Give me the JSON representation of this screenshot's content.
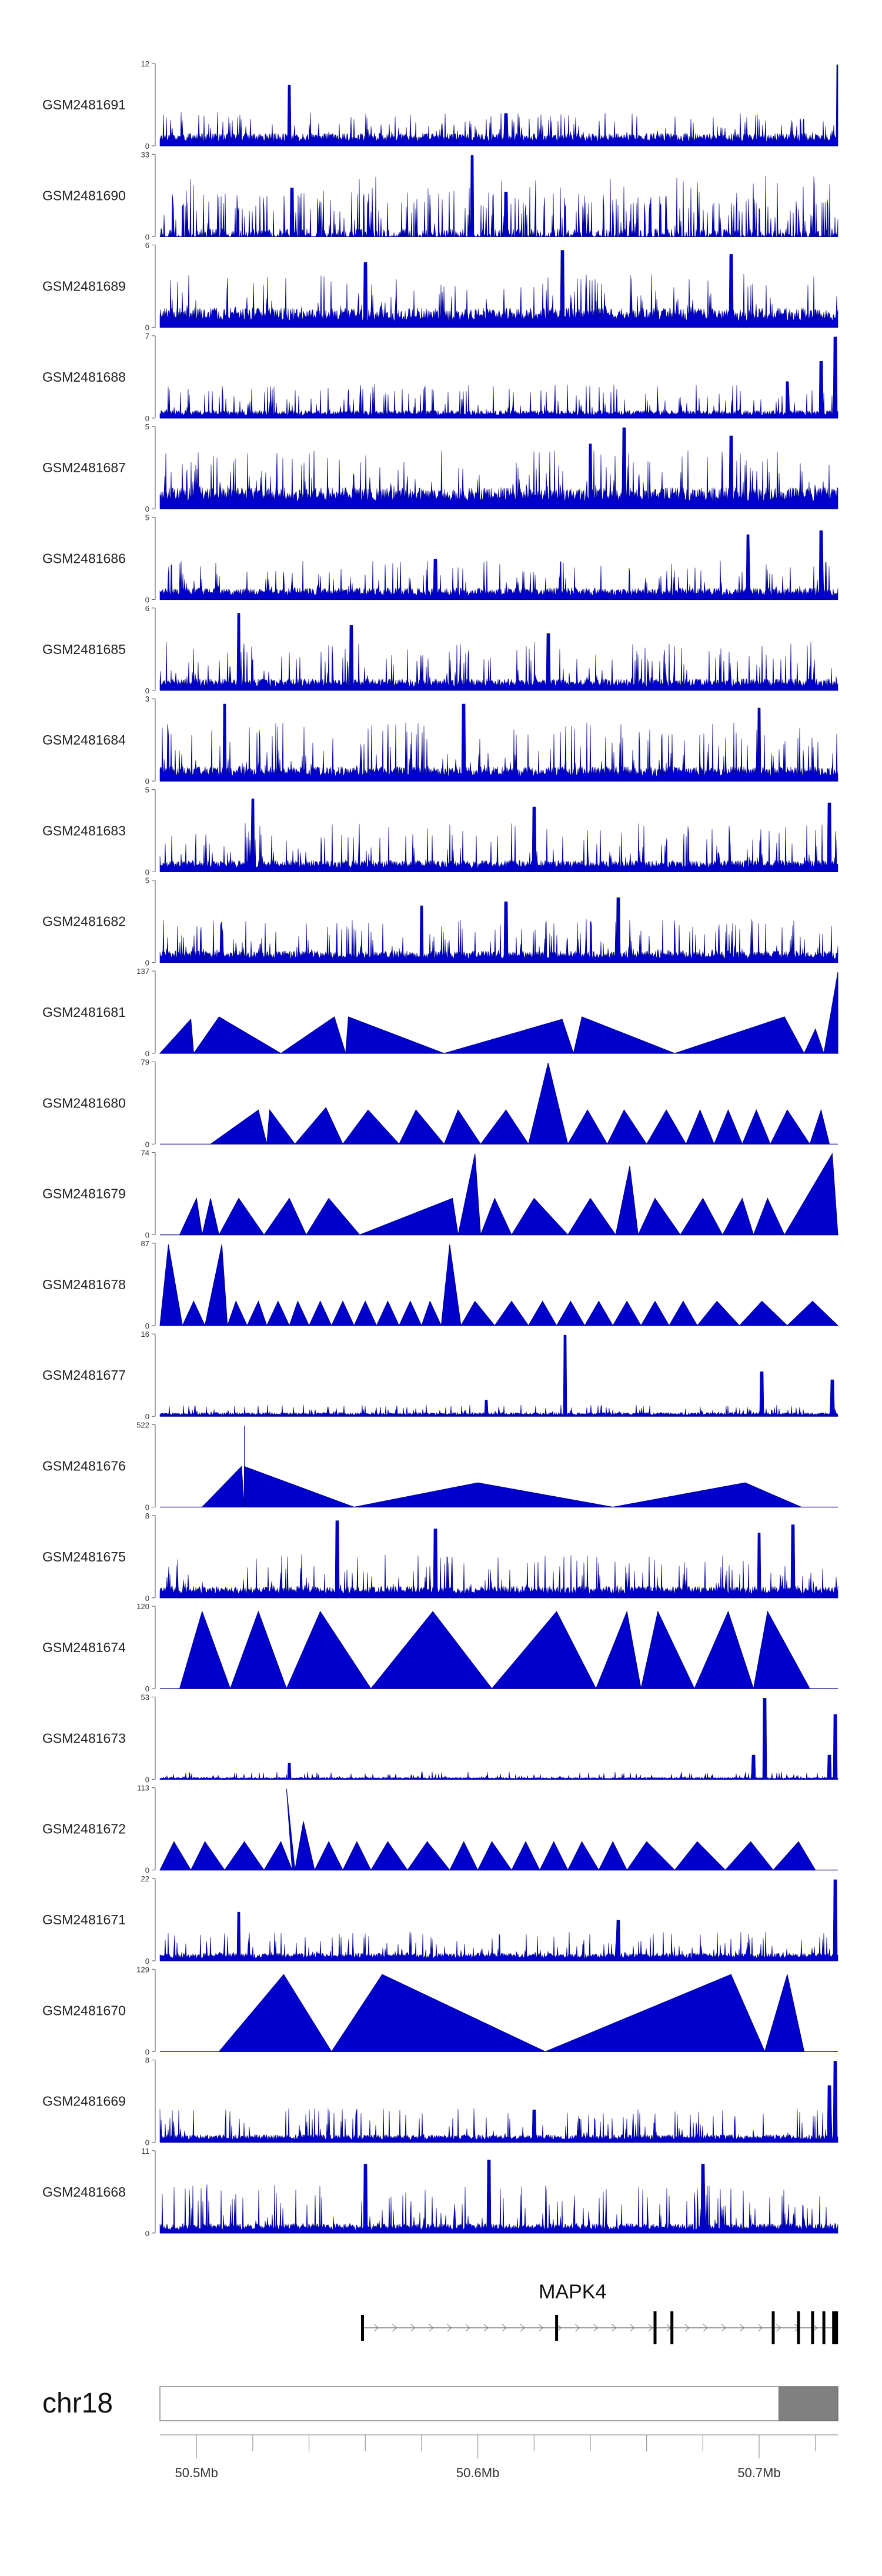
{
  "chart_data": {
    "type": "area",
    "chromosome": "chr18",
    "x_unit": "Mb",
    "xlim": [
      50.487,
      50.728
    ],
    "region_highlight": [
      50.707,
      50.728
    ],
    "x_ticks_major": [
      {
        "value": 50.5,
        "label": "50.5Mb"
      },
      {
        "value": 50.6,
        "label": "50.6Mb"
      },
      {
        "value": 50.7,
        "label": "50.7Mb"
      }
    ],
    "x_ticks_minor": [
      50.52,
      50.54,
      50.56,
      50.58,
      50.62,
      50.64,
      50.66,
      50.68,
      50.72
    ],
    "colors": {
      "signal": "#0000cc",
      "signal_stroke": "#000088",
      "gene": "#000000",
      "highlight": "#808080"
    },
    "gene": {
      "name": "MAPK4",
      "start": 50.559,
      "end": 50.728,
      "exons": [
        50.559,
        50.628,
        50.663,
        50.669,
        50.705,
        50.714,
        50.719,
        50.723,
        50.727
      ]
    },
    "tracks": [
      {
        "name": "GSM2481691",
        "ymax": 12,
        "ymin": 0,
        "style": "dense",
        "baseline": 0.13,
        "noise": 0.35,
        "peaks": [
          [
            50.533,
            0.75
          ],
          [
            50.728,
            1.0
          ],
          [
            50.61,
            0.4
          ]
        ]
      },
      {
        "name": "GSM2481690",
        "ymax": 33,
        "ymin": 0,
        "style": "spiky",
        "baseline": 0.05,
        "noise": 0.45,
        "peaks": [
          [
            50.598,
            1.0
          ],
          [
            50.534,
            0.6
          ],
          [
            50.61,
            0.55
          ]
        ]
      },
      {
        "name": "GSM2481689",
        "ymax": 6,
        "ymin": 0,
        "style": "dense",
        "baseline": 0.2,
        "noise": 0.55,
        "peaks": [
          [
            50.63,
            0.95
          ],
          [
            50.69,
            0.9
          ],
          [
            50.56,
            0.8
          ]
        ]
      },
      {
        "name": "GSM2481688",
        "ymax": 7,
        "ymin": 0,
        "style": "dense",
        "baseline": 0.08,
        "noise": 0.35,
        "peaks": [
          [
            50.727,
            1.0
          ],
          [
            50.722,
            0.7
          ],
          [
            50.71,
            0.45
          ]
        ]
      },
      {
        "name": "GSM2481687",
        "ymax": 5,
        "ymin": 0,
        "style": "dense",
        "baseline": 0.22,
        "noise": 0.6,
        "peaks": [
          [
            50.652,
            1.0
          ],
          [
            50.69,
            0.9
          ],
          [
            50.64,
            0.8
          ]
        ]
      },
      {
        "name": "GSM2481686",
        "ymax": 5,
        "ymin": 0,
        "style": "dense",
        "baseline": 0.12,
        "noise": 0.4,
        "peaks": [
          [
            50.696,
            0.8
          ],
          [
            50.722,
            0.85
          ],
          [
            50.585,
            0.5
          ]
        ]
      },
      {
        "name": "GSM2481685",
        "ymax": 6,
        "ymin": 0,
        "style": "dense",
        "baseline": 0.12,
        "noise": 0.5,
        "peaks": [
          [
            50.515,
            0.95
          ],
          [
            50.555,
            0.8
          ],
          [
            50.625,
            0.7
          ]
        ]
      },
      {
        "name": "GSM2481684",
        "ymax": 3,
        "ymin": 0,
        "style": "dense",
        "baseline": 0.15,
        "noise": 0.6,
        "peaks": [
          [
            50.51,
            0.95
          ],
          [
            50.595,
            0.95
          ],
          [
            50.7,
            0.9
          ]
        ]
      },
      {
        "name": "GSM2481683",
        "ymax": 5,
        "ymin": 0,
        "style": "dense",
        "baseline": 0.12,
        "noise": 0.5,
        "peaks": [
          [
            50.52,
            0.9
          ],
          [
            50.62,
            0.8
          ],
          [
            50.725,
            0.85
          ]
        ]
      },
      {
        "name": "GSM2481682",
        "ymax": 5,
        "ymin": 0,
        "style": "dense",
        "baseline": 0.12,
        "noise": 0.45,
        "peaks": [
          [
            50.61,
            0.75
          ],
          [
            50.65,
            0.8
          ],
          [
            50.58,
            0.7
          ]
        ]
      },
      {
        "name": "GSM2481681",
        "ymax": 137,
        "ymin": 0,
        "style": "triangles",
        "segments": [
          [
            50.487,
            50.498,
            50.499,
            0.42
          ],
          [
            50.499,
            50.508,
            50.53,
            0.45
          ],
          [
            50.53,
            50.549,
            50.553,
            0.45
          ],
          [
            50.553,
            50.554,
            50.588,
            0.45
          ],
          [
            50.588,
            50.63,
            50.634,
            0.42
          ],
          [
            50.634,
            50.637,
            50.67,
            0.45
          ],
          [
            50.67,
            50.709,
            50.716,
            0.45
          ],
          [
            50.716,
            50.72,
            50.723,
            0.3
          ],
          [
            50.723,
            50.728,
            50.728,
            1.0
          ]
        ]
      },
      {
        "name": "GSM2481680",
        "ymax": 79,
        "ymin": 0,
        "style": "triangles",
        "segments": [
          [
            50.505,
            50.522,
            50.525,
            0.42
          ],
          [
            50.525,
            50.526,
            50.535,
            0.42
          ],
          [
            50.535,
            50.546,
            50.552,
            0.45
          ],
          [
            50.552,
            50.561,
            50.572,
            0.42
          ],
          [
            50.572,
            50.578,
            50.588,
            0.42
          ],
          [
            50.588,
            50.593,
            50.601,
            0.42
          ],
          [
            50.601,
            50.61,
            50.618,
            0.42
          ],
          [
            50.618,
            50.625,
            50.632,
            1.0
          ],
          [
            50.632,
            50.639,
            50.646,
            0.42
          ],
          [
            50.646,
            50.652,
            50.66,
            0.42
          ],
          [
            50.66,
            50.667,
            50.674,
            0.42
          ],
          [
            50.674,
            50.679,
            50.684,
            0.42
          ],
          [
            50.684,
            50.689,
            50.694,
            0.42
          ],
          [
            50.694,
            50.699,
            50.704,
            0.42
          ],
          [
            50.704,
            50.71,
            50.718,
            0.42
          ],
          [
            50.718,
            50.722,
            50.725,
            0.42
          ]
        ]
      },
      {
        "name": "GSM2481679",
        "ymax": 74,
        "ymin": 0,
        "style": "triangles",
        "segments": [
          [
            50.494,
            50.5,
            50.502,
            0.45
          ],
          [
            50.502,
            50.505,
            50.508,
            0.45
          ],
          [
            50.508,
            50.515,
            50.524,
            0.45
          ],
          [
            50.524,
            50.533,
            50.539,
            0.45
          ],
          [
            50.539,
            50.547,
            50.558,
            0.45
          ],
          [
            50.558,
            50.591,
            50.593,
            0.45
          ],
          [
            50.593,
            50.599,
            50.601,
            1.0
          ],
          [
            50.601,
            50.606,
            50.612,
            0.45
          ],
          [
            50.612,
            50.62,
            50.632,
            0.45
          ],
          [
            50.632,
            50.64,
            50.649,
            0.45
          ],
          [
            50.649,
            50.654,
            50.657,
            0.85
          ],
          [
            50.657,
            50.663,
            50.672,
            0.45
          ],
          [
            50.672,
            50.68,
            50.687,
            0.45
          ],
          [
            50.687,
            50.694,
            50.698,
            0.45
          ],
          [
            50.698,
            50.703,
            50.709,
            0.45
          ],
          [
            50.709,
            50.726,
            50.728,
            1.0
          ]
        ]
      },
      {
        "name": "GSM2481678",
        "ymax": 87,
        "ymin": 0,
        "style": "triangles",
        "segments": [
          [
            50.487,
            50.49,
            50.495,
            1.0
          ],
          [
            50.495,
            50.499,
            50.503,
            0.3
          ],
          [
            50.503,
            50.509,
            50.511,
            1.0
          ],
          [
            50.511,
            50.514,
            50.518,
            0.3
          ],
          [
            50.518,
            50.522,
            50.525,
            0.3
          ],
          [
            50.525,
            50.529,
            50.533,
            0.3
          ],
          [
            50.533,
            50.536,
            50.54,
            0.3
          ],
          [
            50.54,
            50.544,
            50.548,
            0.3
          ],
          [
            50.548,
            50.552,
            50.556,
            0.3
          ],
          [
            50.556,
            50.56,
            50.564,
            0.3
          ],
          [
            50.564,
            50.568,
            50.572,
            0.3
          ],
          [
            50.572,
            50.576,
            50.58,
            0.3
          ],
          [
            50.58,
            50.583,
            50.587,
            0.3
          ],
          [
            50.587,
            50.59,
            50.594,
            1.0
          ],
          [
            50.594,
            50.599,
            50.606,
            0.3
          ],
          [
            50.606,
            50.612,
            50.618,
            0.3
          ],
          [
            50.618,
            50.623,
            50.628,
            0.3
          ],
          [
            50.628,
            50.633,
            50.638,
            0.3
          ],
          [
            50.638,
            50.643,
            50.648,
            0.3
          ],
          [
            50.648,
            50.653,
            50.658,
            0.3
          ],
          [
            50.658,
            50.663,
            50.668,
            0.3
          ],
          [
            50.668,
            50.673,
            50.678,
            0.3
          ],
          [
            50.678,
            50.685,
            50.693,
            0.3
          ],
          [
            50.693,
            50.701,
            50.71,
            0.3
          ],
          [
            50.71,
            50.719,
            50.728,
            0.3
          ]
        ]
      },
      {
        "name": "GSM2481677",
        "ymax": 16,
        "ymin": 0,
        "style": "dense",
        "baseline": 0.04,
        "noise": 0.12,
        "peaks": [
          [
            50.631,
            1.0
          ],
          [
            50.701,
            0.55
          ],
          [
            50.726,
            0.45
          ],
          [
            50.603,
            0.2
          ]
        ]
      },
      {
        "name": "GSM2481676",
        "ymax": 522,
        "ymin": 0,
        "style": "triangles",
        "segments": [
          [
            50.502,
            50.516,
            50.517,
            0.5
          ],
          [
            50.517,
            50.517,
            50.517,
            1.0
          ],
          [
            50.517,
            50.517,
            50.556,
            0.5
          ],
          [
            50.556,
            50.6,
            50.648,
            0.3
          ],
          [
            50.648,
            50.695,
            50.715,
            0.3
          ]
        ]
      },
      {
        "name": "GSM2481675",
        "ymax": 8,
        "ymin": 0,
        "style": "dense",
        "baseline": 0.12,
        "noise": 0.45,
        "peaks": [
          [
            50.55,
            0.95
          ],
          [
            50.585,
            0.85
          ],
          [
            50.712,
            0.9
          ],
          [
            50.7,
            0.8
          ]
        ]
      },
      {
        "name": "GSM2481674",
        "ymax": 120,
        "ymin": 0,
        "style": "triangles",
        "segments": [
          [
            50.494,
            50.502,
            50.512,
            0.95
          ],
          [
            50.512,
            50.522,
            50.532,
            0.95
          ],
          [
            50.532,
            50.544,
            50.562,
            0.95
          ],
          [
            50.562,
            50.584,
            50.605,
            0.95
          ],
          [
            50.605,
            50.628,
            50.642,
            0.95
          ],
          [
            50.642,
            50.653,
            50.658,
            0.95
          ],
          [
            50.658,
            50.664,
            50.677,
            0.95
          ],
          [
            50.677,
            50.689,
            50.698,
            0.95
          ],
          [
            50.698,
            50.703,
            50.718,
            0.95
          ]
        ]
      },
      {
        "name": "GSM2481673",
        "ymax": 53,
        "ymin": 0,
        "style": "dense",
        "baseline": 0.02,
        "noise": 0.08,
        "peaks": [
          [
            50.702,
            1.0
          ],
          [
            50.698,
            0.3
          ],
          [
            50.727,
            0.8
          ],
          [
            50.725,
            0.3
          ],
          [
            50.533,
            0.2
          ]
        ]
      },
      {
        "name": "GSM2481672",
        "ymax": 113,
        "ymin": 0,
        "style": "triangles",
        "segments": [
          [
            50.487,
            50.492,
            50.498,
            0.35
          ],
          [
            50.498,
            50.503,
            50.51,
            0.35
          ],
          [
            50.51,
            50.517,
            50.524,
            0.35
          ],
          [
            50.524,
            50.53,
            50.534,
            0.35
          ],
          [
            50.534,
            50.532,
            50.535,
            1.0
          ],
          [
            50.535,
            50.538,
            50.542,
            0.6
          ],
          [
            50.542,
            50.547,
            50.552,
            0.35
          ],
          [
            50.552,
            50.557,
            50.562,
            0.35
          ],
          [
            50.562,
            50.568,
            50.575,
            0.35
          ],
          [
            50.575,
            50.582,
            50.59,
            0.35
          ],
          [
            50.59,
            50.595,
            50.6,
            0.35
          ],
          [
            50.6,
            50.605,
            50.612,
            0.35
          ],
          [
            50.612,
            50.617,
            50.622,
            0.35
          ],
          [
            50.622,
            50.627,
            50.632,
            0.35
          ],
          [
            50.632,
            50.637,
            50.643,
            0.35
          ],
          [
            50.643,
            50.648,
            50.653,
            0.35
          ],
          [
            50.653,
            50.66,
            50.67,
            0.35
          ],
          [
            50.67,
            50.678,
            50.688,
            0.35
          ],
          [
            50.688,
            50.697,
            50.705,
            0.35
          ],
          [
            50.705,
            50.714,
            50.72,
            0.35
          ]
        ]
      },
      {
        "name": "GSM2481671",
        "ymax": 22,
        "ymin": 0,
        "style": "dense",
        "baseline": 0.08,
        "noise": 0.3,
        "peaks": [
          [
            50.727,
            1.0
          ],
          [
            50.515,
            0.6
          ],
          [
            50.65,
            0.5
          ]
        ]
      },
      {
        "name": "GSM2481670",
        "ymax": 129,
        "ymin": 0,
        "style": "triangles",
        "segments": [
          [
            50.508,
            50.531,
            50.548,
            0.95
          ],
          [
            50.548,
            50.566,
            50.624,
            0.95
          ],
          [
            50.624,
            50.69,
            50.702,
            0.95
          ],
          [
            50.702,
            50.71,
            50.716,
            0.95
          ]
        ]
      },
      {
        "name": "GSM2481669",
        "ymax": 8,
        "ymin": 0,
        "style": "dense",
        "baseline": 0.08,
        "noise": 0.35,
        "peaks": [
          [
            50.727,
            1.0
          ],
          [
            50.725,
            0.7
          ],
          [
            50.62,
            0.4
          ]
        ]
      },
      {
        "name": "GSM2481668",
        "ymax": 11,
        "ymin": 0,
        "style": "dense",
        "baseline": 0.1,
        "noise": 0.5,
        "peaks": [
          [
            50.604,
            0.9
          ],
          [
            50.56,
            0.85
          ],
          [
            50.68,
            0.85
          ]
        ]
      }
    ]
  }
}
